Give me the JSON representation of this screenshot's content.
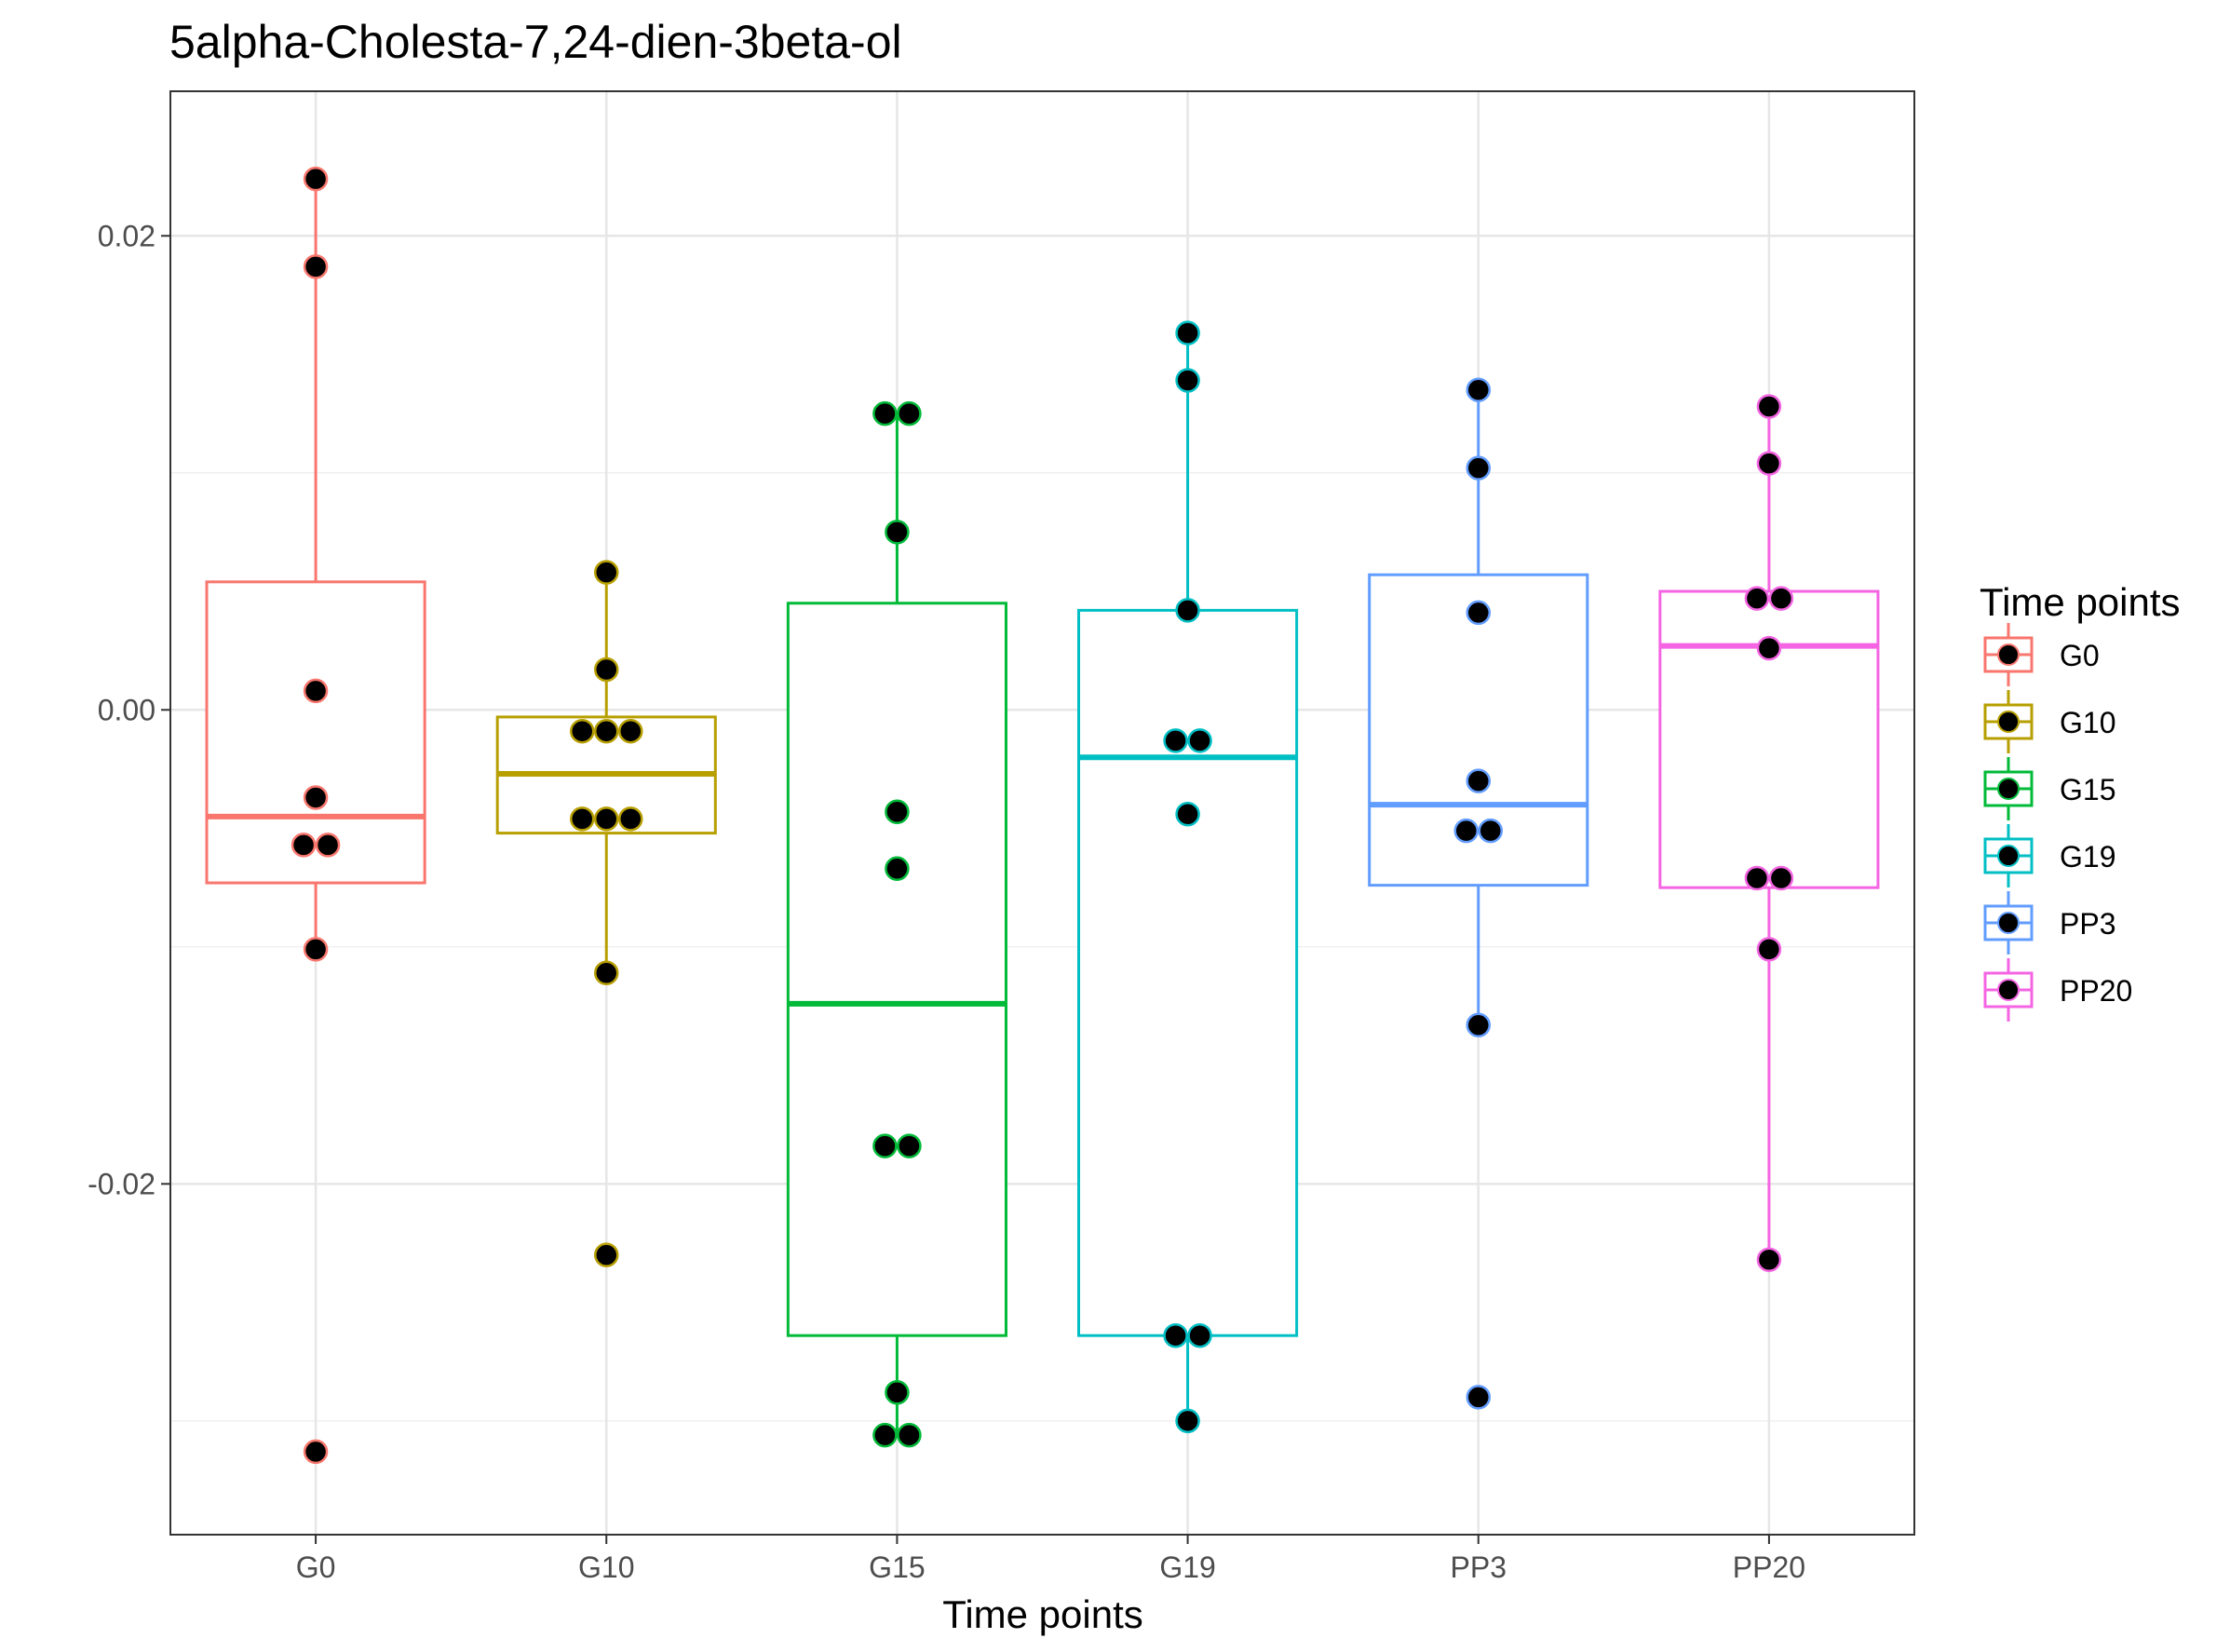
{
  "chart_data": {
    "type": "box",
    "title": "5alpha-Cholesta-7,24-dien-3beta-ol",
    "xlabel": "Time points",
    "ylabel": "",
    "categories": [
      "G0",
      "G10",
      "G15",
      "G19",
      "PP3",
      "PP20"
    ],
    "colors": [
      "#F8766D",
      "#B79F00",
      "#00BA38",
      "#00BFC4",
      "#619CFF",
      "#F564E3"
    ],
    "ylim": [
      -0.0348,
      0.0261
    ],
    "yticks": [
      -0.02,
      0.0,
      0.02
    ],
    "ytick_labels": [
      "-0.02",
      "0.00",
      "0.02"
    ],
    "grid": true,
    "legend": {
      "title": "Time points",
      "position": "right",
      "labels": [
        "G0",
        "G10",
        "G15",
        "G19",
        "PP3",
        "PP20"
      ]
    },
    "boxes": [
      {
        "name": "G0",
        "min": -0.0101,
        "q1": -0.0073,
        "median": -0.0045,
        "q3": 0.0054,
        "max": 0.0224,
        "points": [
          0.0224,
          0.0187,
          0.0008,
          -0.0037,
          -0.0057,
          -0.0057,
          -0.0101,
          -0.0313
        ]
      },
      {
        "name": "G10",
        "min": -0.0111,
        "q1": -0.0052,
        "median": -0.0027,
        "q3": -0.0003,
        "max": 0.0058,
        "points": [
          0.0058,
          0.0017,
          -0.0009,
          -0.0009,
          -0.0009,
          -0.0046,
          -0.0046,
          -0.0046,
          -0.0111,
          -0.023
        ]
      },
      {
        "name": "G15",
        "min": -0.0306,
        "q1": -0.0264,
        "median": -0.0124,
        "q3": 0.0045,
        "max": 0.0125,
        "points": [
          0.0125,
          0.0125,
          0.0075,
          -0.0043,
          -0.0067,
          -0.0184,
          -0.0184,
          -0.0288,
          -0.0306,
          -0.0306
        ]
      },
      {
        "name": "G19",
        "min": -0.03,
        "q1": -0.0264,
        "median": -0.002,
        "q3": 0.0042,
        "max": 0.0159,
        "points": [
          0.0159,
          0.0139,
          0.0042,
          -0.0013,
          -0.0013,
          -0.0044,
          -0.0264,
          -0.0264,
          -0.03
        ]
      },
      {
        "name": "PP3",
        "min": -0.0133,
        "q1": -0.0074,
        "median": -0.004,
        "q3": 0.0057,
        "max": 0.0135,
        "points": [
          0.0135,
          0.0102,
          0.0041,
          -0.003,
          -0.0051,
          -0.0051,
          -0.0133,
          -0.029
        ]
      },
      {
        "name": "PP20",
        "min": -0.0232,
        "q1": -0.0075,
        "median": 0.0027,
        "q3": 0.005,
        "max": 0.0128,
        "points": [
          0.0128,
          0.0104,
          0.0047,
          0.0047,
          0.0026,
          -0.0071,
          -0.0071,
          -0.0101,
          -0.0232
        ]
      }
    ]
  }
}
